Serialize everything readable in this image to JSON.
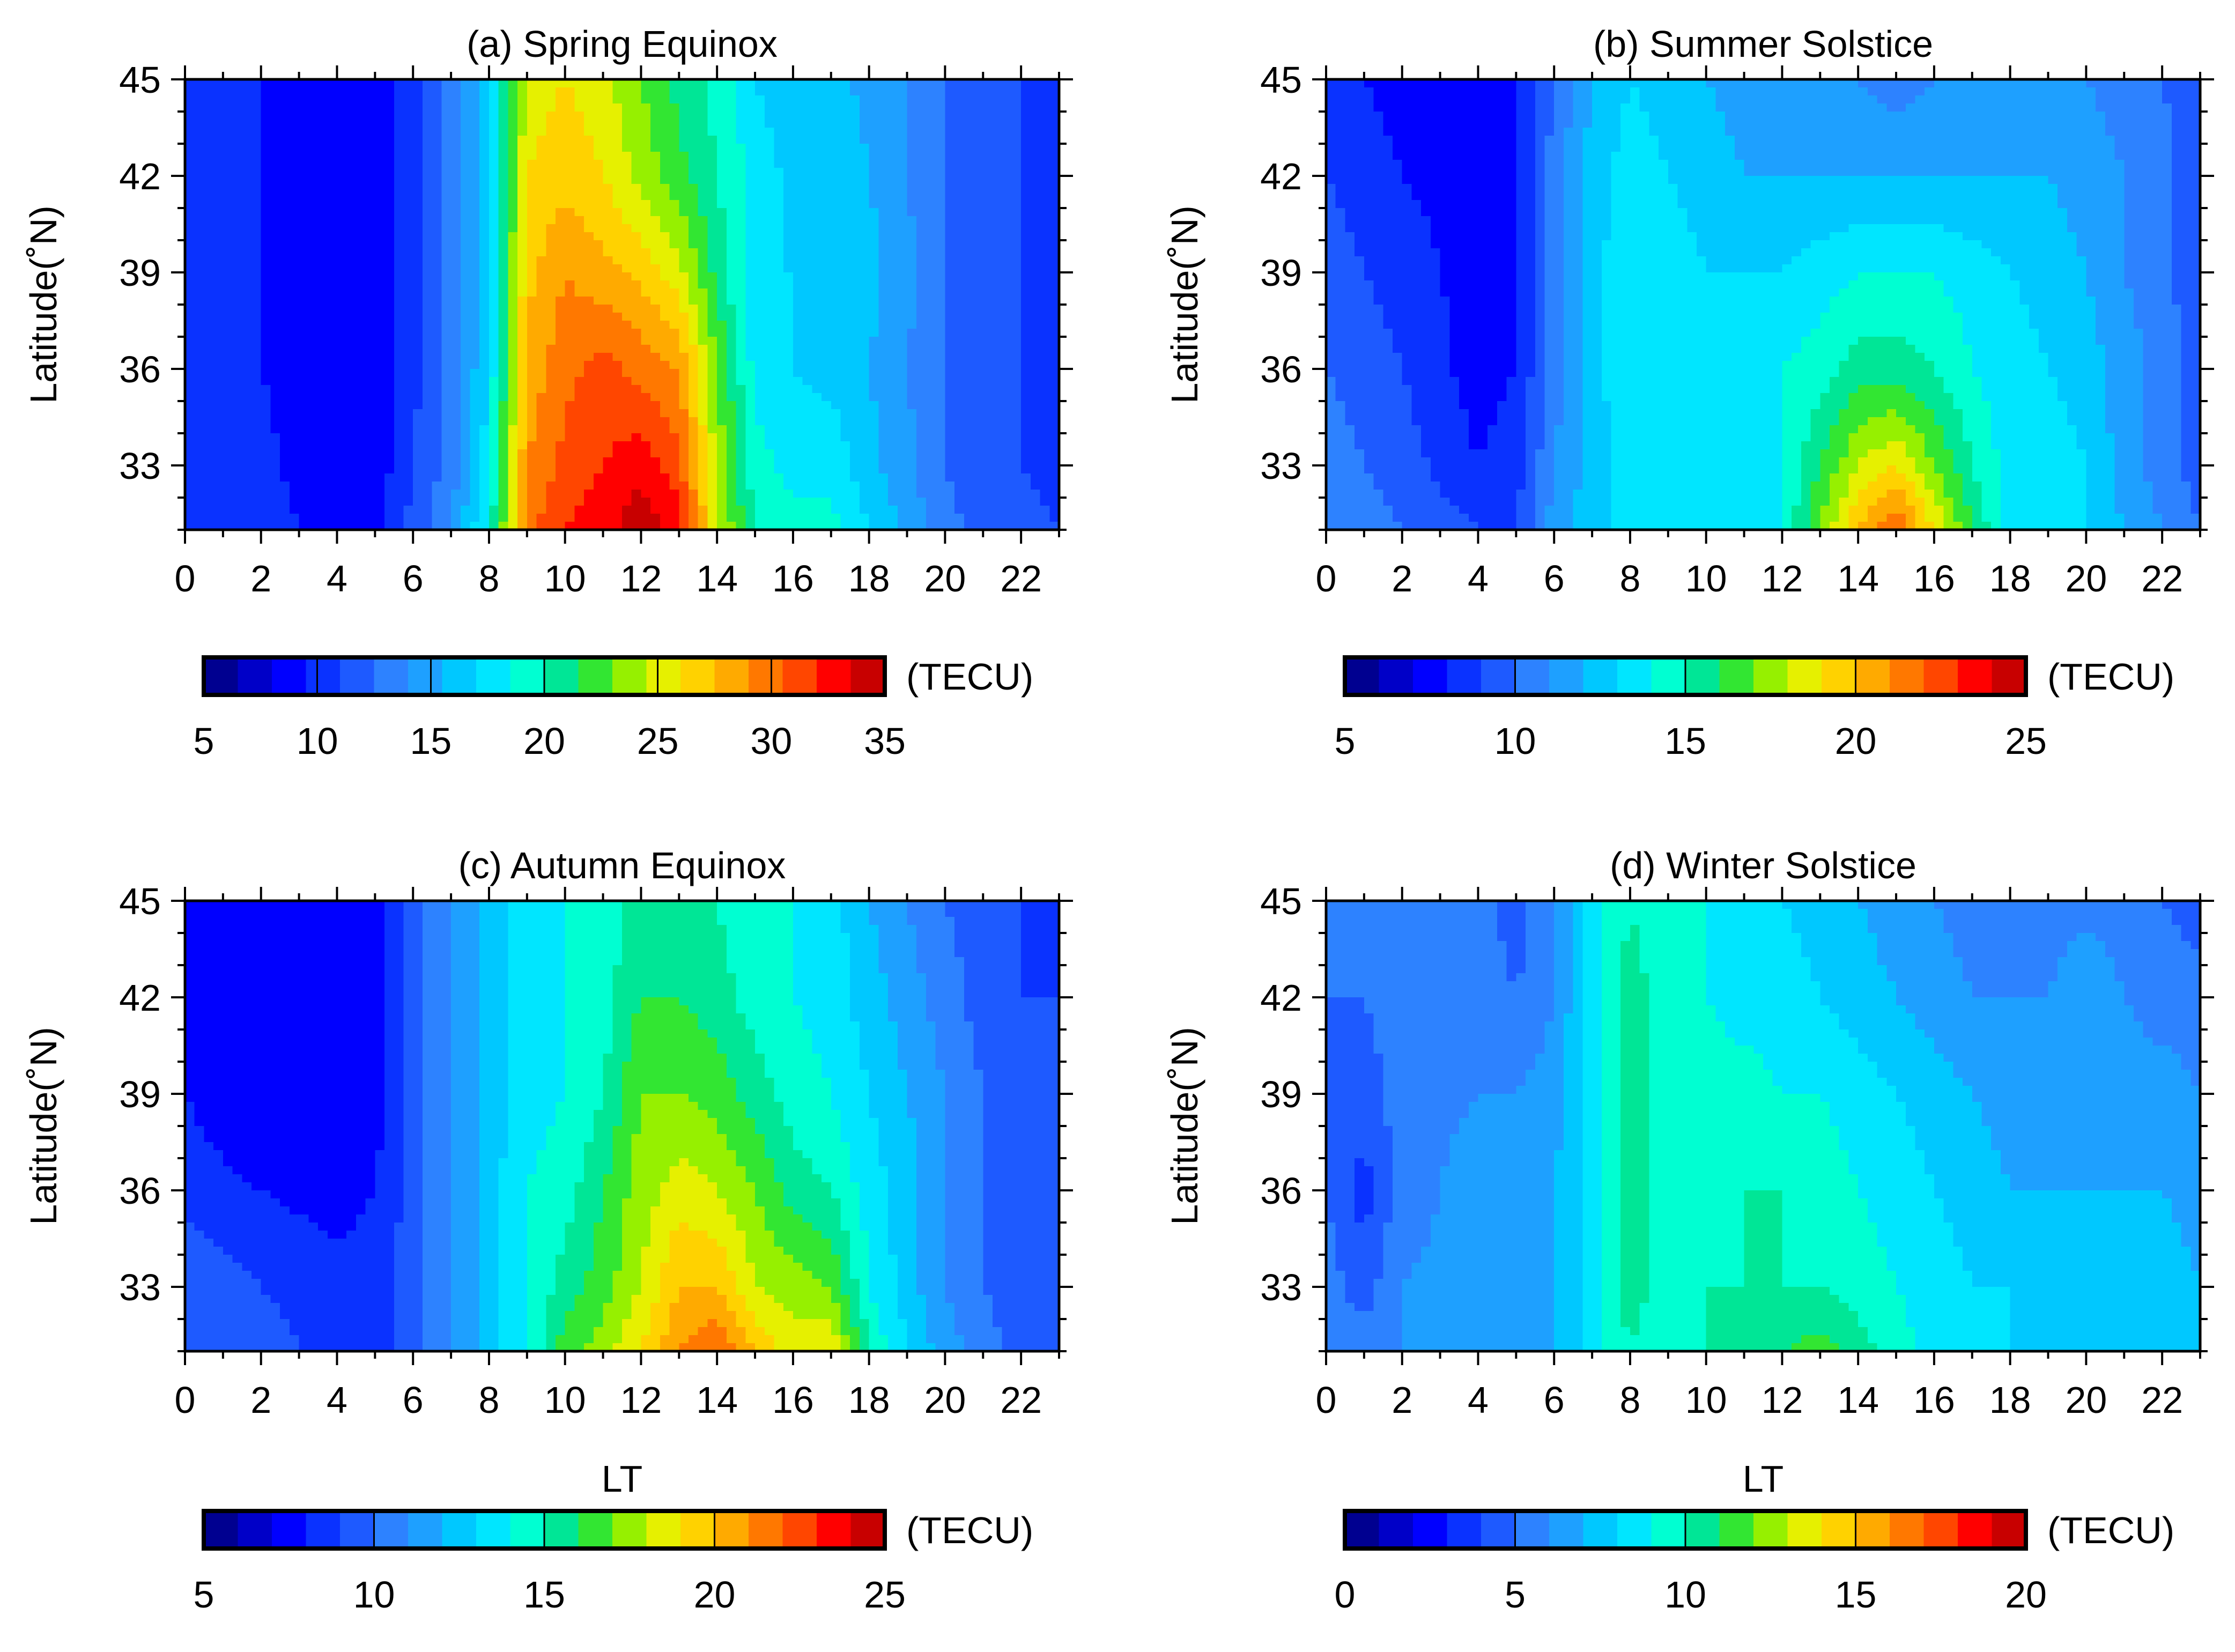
{
  "chart_data": [
    {
      "type": "heatmap",
      "title": "(a) Spring Equinox",
      "xlabel": "",
      "ylabel": "Latitude(˚N)",
      "xlim": [
        0,
        23
      ],
      "ylim": [
        31,
        45
      ],
      "xticks": [
        "0",
        "2",
        "4",
        "6",
        "8",
        "10",
        "12",
        "14",
        "16",
        "18",
        "20",
        "22"
      ],
      "yticks": [
        "33",
        "36",
        "39",
        "42",
        "45"
      ],
      "colorbar": {
        "min": 5,
        "max": 35,
        "levels": 20,
        "ticks": [
          "5",
          "10",
          "15",
          "20",
          "25",
          "30",
          "35"
        ],
        "unit": "(TECU)"
      },
      "approx_field": {
        "lt": [
          0,
          2,
          4,
          5,
          6,
          7,
          8,
          9,
          10,
          11,
          12,
          13,
          14,
          15,
          16,
          17,
          18,
          19,
          20,
          21,
          22,
          23
        ],
        "lat": [
          31,
          33,
          36,
          39,
          42,
          45
        ],
        "z": [
          [
            11,
            10.5,
            8.5,
            9,
            11.5,
            14,
            19,
            30,
            32,
            33,
            34.5,
            33,
            25,
            20,
            19,
            19,
            17,
            15,
            13,
            12,
            11.5,
            11
          ],
          [
            10,
            10,
            8,
            8.5,
            11,
            13,
            18,
            29,
            31,
            32,
            33,
            31,
            24,
            19,
            18,
            18,
            16,
            14.5,
            12.5,
            11.5,
            11,
            10.5
          ],
          [
            10,
            9.5,
            8,
            8,
            10.5,
            13,
            17,
            28,
            30,
            31,
            30,
            29,
            23,
            18,
            17,
            16.5,
            15.5,
            14,
            12.5,
            11,
            11,
            10
          ],
          [
            10,
            9.5,
            8,
            8,
            10.5,
            13,
            17,
            27,
            29,
            28,
            27,
            25,
            21,
            17,
            17,
            17,
            16,
            14.5,
            12.5,
            11.5,
            11,
            10
          ],
          [
            10,
            9.5,
            8,
            8,
            10.5,
            13,
            17,
            26,
            27,
            26,
            24,
            22,
            20,
            18,
            16.5,
            17,
            15.5,
            14,
            12.5,
            11.5,
            11,
            10
          ],
          [
            10,
            9.5,
            8,
            8,
            10.5,
            13,
            17,
            25,
            26,
            25,
            23,
            21,
            19.5,
            17,
            16,
            16,
            15,
            14,
            12.5,
            11.5,
            11,
            10
          ]
        ]
      }
    },
    {
      "type": "heatmap",
      "title": "(b) Summer Solstice",
      "xlabel": "",
      "ylabel": "Latitude(˚N)",
      "xlim": [
        0,
        23
      ],
      "ylim": [
        31,
        45
      ],
      "xticks": [
        "0",
        "2",
        "4",
        "6",
        "8",
        "10",
        "12",
        "14",
        "16",
        "18",
        "20",
        "22"
      ],
      "yticks": [
        "33",
        "36",
        "39",
        "42",
        "45"
      ],
      "colorbar": {
        "min": 5,
        "max": 25,
        "levels": 20,
        "ticks": [
          "5",
          "10",
          "15",
          "20",
          "25"
        ],
        "unit": "(TECU)"
      },
      "approx_field": {
        "lt": [
          0,
          2,
          4,
          5,
          6,
          7,
          8,
          9,
          10,
          11,
          12,
          13,
          14,
          15,
          16,
          17,
          18,
          19,
          20,
          21,
          22,
          23
        ],
        "lat": [
          31,
          33,
          36,
          39,
          42,
          45
        ],
        "z": [
          [
            11,
            10,
            9,
            9,
            11.5,
            12.5,
            13.5,
            13.5,
            13.5,
            13.5,
            14,
            17,
            20,
            22,
            19,
            16,
            13.5,
            13.5,
            13,
            12,
            11,
            10
          ],
          [
            10.5,
            9.5,
            8,
            8.5,
            11,
            12.5,
            13.5,
            13.5,
            13.5,
            13.5,
            14,
            16,
            18,
            19,
            17,
            15,
            13.5,
            13.5,
            13,
            11.5,
            10.5,
            9.5
          ],
          [
            10,
            9,
            7.5,
            8,
            10.5,
            12.5,
            14,
            13.5,
            13.5,
            13.5,
            14,
            14.5,
            15.5,
            15.5,
            15,
            14,
            13.5,
            13,
            12.5,
            11.5,
            10.5,
            9.5
          ],
          [
            9.5,
            8.5,
            7.5,
            8,
            10.5,
            12.5,
            14,
            13.5,
            13,
            13,
            13,
            13.5,
            14,
            14,
            14,
            13.5,
            13,
            12.5,
            12,
            11,
            10.5,
            9
          ],
          [
            9,
            8,
            7.5,
            8,
            10.5,
            12.5,
            13.5,
            13,
            12.5,
            12,
            12,
            12,
            12,
            12,
            12,
            12,
            12,
            12,
            11.5,
            11,
            10.5,
            9
          ],
          [
            8.5,
            7.5,
            7.5,
            8,
            10,
            12,
            13,
            12.5,
            12,
            11.5,
            11.5,
            11,
            11,
            10.5,
            11,
            11,
            11,
            11,
            11,
            10.5,
            10,
            9
          ]
        ]
      }
    },
    {
      "type": "heatmap",
      "title": "(c) Autumn Equinox",
      "xlabel": "LT",
      "ylabel": "Latitude(˚N)",
      "xlim": [
        0,
        23
      ],
      "ylim": [
        31,
        45
      ],
      "xticks": [
        "0",
        "2",
        "4",
        "6",
        "8",
        "10",
        "12",
        "14",
        "16",
        "18",
        "20",
        "22"
      ],
      "yticks": [
        "33",
        "36",
        "39",
        "42",
        "45"
      ],
      "colorbar": {
        "min": 5,
        "max": 25,
        "levels": 20,
        "ticks": [
          "5",
          "10",
          "15",
          "20",
          "25"
        ],
        "unit": "(TECU)"
      },
      "approx_field": {
        "lt": [
          0,
          2,
          4,
          5,
          6,
          7,
          8,
          9,
          10,
          11,
          12,
          13,
          14,
          15,
          16,
          17,
          18,
          19,
          20,
          21,
          22,
          23
        ],
        "lat": [
          31,
          33,
          36,
          39,
          42,
          45
        ],
        "z": [
          [
            9.5,
            9.5,
            8.5,
            8.5,
            9.5,
            11,
            12.5,
            14,
            16.5,
            17.5,
            19,
            21,
            22,
            20,
            18.5,
            19,
            15,
            13,
            11.5,
            10.5,
            9.5,
            9
          ],
          [
            10,
            9,
            8.5,
            8.5,
            9.5,
            11,
            12.5,
            14,
            15.5,
            16.5,
            18,
            20,
            20,
            18,
            17.5,
            17,
            14,
            12.5,
            11,
            10,
            9.5,
            9
          ],
          [
            8.5,
            8,
            7.5,
            8,
            9.5,
            11,
            12.5,
            14,
            14.5,
            16,
            17.5,
            18.5,
            18,
            17,
            15.5,
            15,
            13.5,
            12.5,
            11,
            10,
            9.5,
            9
          ],
          [
            8,
            7,
            7,
            7.5,
            9.5,
            11,
            12.5,
            13.5,
            14,
            15,
            17,
            17,
            16.5,
            15.5,
            14.5,
            14,
            13,
            12,
            11,
            10,
            9.5,
            9
          ],
          [
            7,
            7,
            7,
            7.5,
            9.5,
            11,
            12.5,
            13.5,
            14,
            14.5,
            16,
            16,
            15.5,
            14.5,
            14,
            13.5,
            12.5,
            11.5,
            10.5,
            9.5,
            9,
            9
          ],
          [
            7,
            7,
            7,
            7.5,
            9.5,
            11,
            12.5,
            13.5,
            14,
            14.5,
            15.5,
            15,
            15,
            14,
            14,
            13.5,
            12,
            11,
            10,
            9.5,
            9,
            8.5
          ]
        ]
      }
    },
    {
      "type": "heatmap",
      "title": "(d) Winter Solstice",
      "xlabel": "LT",
      "ylabel": "Latitude(˚N)",
      "xlim": [
        0,
        23
      ],
      "ylim": [
        31,
        45
      ],
      "xticks": [
        "0",
        "2",
        "4",
        "6",
        "8",
        "10",
        "12",
        "14",
        "16",
        "18",
        "20",
        "22"
      ],
      "yticks": [
        "33",
        "36",
        "39",
        "42",
        "45"
      ],
      "colorbar": {
        "min": 0,
        "max": 20,
        "levels": 20,
        "ticks": [
          "0",
          "5",
          "10",
          "15",
          "20"
        ],
        "unit": "(TECU)"
      },
      "approx_field": {
        "lt": [
          0,
          1,
          2,
          4,
          5,
          6,
          7,
          8,
          9,
          10,
          11,
          12,
          13,
          14,
          15,
          16,
          17,
          18,
          19,
          20,
          21,
          22,
          23
        ],
        "lat": [
          31,
          33,
          36,
          39,
          42,
          45
        ],
        "z": [
          [
            5.5,
            5.5,
            6,
            6.5,
            6.5,
            7,
            8.5,
            10,
            9,
            10,
            10.5,
            11,
            11.5,
            10.5,
            9.5,
            8.5,
            8.5,
            8,
            8,
            8,
            8,
            8,
            8
          ],
          [
            5.5,
            4.5,
            6,
            6.5,
            6.5,
            7,
            8.5,
            10.5,
            9.5,
            10,
            10,
            10,
            10,
            9.5,
            9,
            8.5,
            8,
            8,
            7.5,
            7.5,
            7.5,
            7.5,
            7
          ],
          [
            5,
            3.5,
            5.5,
            6.5,
            6.5,
            7,
            8.5,
            10.5,
            9.5,
            9.5,
            10,
            10,
            9.5,
            9,
            8.5,
            8,
            7.5,
            7,
            7,
            7,
            7,
            7,
            6.5
          ],
          [
            5,
            4.5,
            5.5,
            6,
            6,
            6.5,
            8.5,
            10.5,
            9.5,
            9.5,
            9.5,
            9,
            9,
            8.5,
            8,
            7.5,
            7,
            6.5,
            6.5,
            6.5,
            6.5,
            6.5,
            6
          ],
          [
            5,
            5,
            5.5,
            5.5,
            5,
            6,
            8.5,
            10.5,
            9.5,
            9,
            8.5,
            8.5,
            8,
            7.5,
            7,
            6.5,
            6,
            6,
            6,
            7,
            6,
            5.5,
            5.5
          ],
          [
            5,
            5,
            5.5,
            5.5,
            4.5,
            6,
            8.5,
            10,
            9,
            9,
            8.5,
            8,
            7.5,
            7,
            6.5,
            6,
            5.5,
            5.5,
            5.5,
            5.5,
            5.5,
            5,
            4.5
          ]
        ]
      }
    }
  ]
}
